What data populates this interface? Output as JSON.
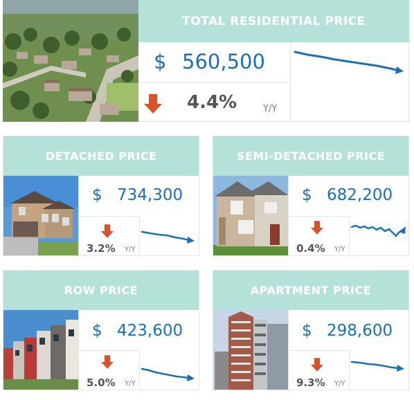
{
  "colors": {
    "header_bg": "#b5e2d8",
    "price_text": "#1a6fb5",
    "down_arrow": "#d6532c",
    "trend_line": "#1a6fb5"
  },
  "total": {
    "title": "TOTAL RESIDENTIAL PRICE",
    "currency": "$",
    "price": "560,500",
    "change": "4.4%",
    "change_direction": "down",
    "period": "Y/Y",
    "image": "aerial-neighborhood-photo"
  },
  "cards": [
    {
      "title": "DETACHED PRICE",
      "currency": "$",
      "price": "734,300",
      "change": "3.2%",
      "change_direction": "down",
      "period": "Y/Y",
      "image": "detached-house-photo"
    },
    {
      "title": "SEMI-DETACHED PRICE",
      "currency": "$",
      "price": "682,200",
      "change": "0.4%",
      "change_direction": "down",
      "period": "Y/Y",
      "image": "semi-detached-house-photo"
    },
    {
      "title": "ROW PRICE",
      "currency": "$",
      "price": "423,600",
      "change": "5.0%",
      "change_direction": "down",
      "period": "Y/Y",
      "image": "row-houses-photo"
    },
    {
      "title": "APARTMENT PRICE",
      "currency": "$",
      "price": "298,600",
      "change": "9.3%",
      "change_direction": "down",
      "period": "Y/Y",
      "image": "apartment-tower-photo"
    }
  ]
}
